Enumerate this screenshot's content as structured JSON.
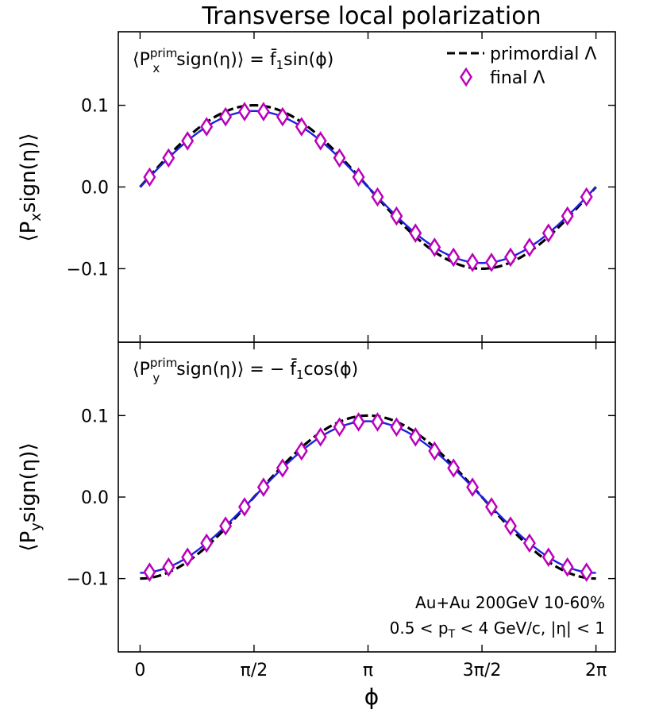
{
  "chart_data": {
    "type": "line",
    "title": "Transverse local polarization",
    "xlabel": "ϕ",
    "x_ticks": [
      {
        "value": 0,
        "label": "0"
      },
      {
        "value": 1.5708,
        "label": "π/2"
      },
      {
        "value": 3.1416,
        "label": "π"
      },
      {
        "value": 4.7124,
        "label": "3π/2"
      },
      {
        "value": 6.2832,
        "label": "2π"
      }
    ],
    "xlim": [
      -0.3,
      6.55
    ],
    "legend": {
      "placement": "top-right",
      "entries": [
        {
          "label": "primordial Λ",
          "style": "black dashed line"
        },
        {
          "label": "final Λ",
          "style": "magenta open diamond"
        }
      ]
    },
    "colors": {
      "primordial": "#000000",
      "fit": "#1f1fe0",
      "final": "#bb00bb"
    },
    "panels": [
      {
        "ylabel": "⟨Pxsign(η)⟩",
        "ylabel_main": "⟨P",
        "ylabel_sub": "x",
        "ylabel_rest": "sign(η)⟩",
        "ylim": [
          -0.19,
          0.19
        ],
        "y_ticks": [
          {
            "value": 0.1,
            "label": "0.1"
          },
          {
            "value": 0.0,
            "label": "0.0"
          },
          {
            "value": -0.1,
            "label": "−0.1"
          }
        ],
        "formula": {
          "lhs_open": "⟨P",
          "sup": "prim",
          "sub": "x",
          "lhs_rest": "sign(η)⟩ = ",
          "fbar": "f̄",
          "fsub": "1",
          "rhs": "sin(ϕ)"
        },
        "series": [
          {
            "name": "primordial Λ",
            "style": "dashed",
            "function": "0.1*sin(x)",
            "amplitude": 0.1,
            "phase": "sin"
          },
          {
            "name": "fit",
            "style": "solid",
            "function": "0.093*sin(x)",
            "amplitude": 0.093,
            "phase": "sin"
          },
          {
            "name": "final Λ",
            "style": "markers",
            "x": [
              0.1309,
              0.3927,
              0.6545,
              0.9163,
              1.1781,
              1.4399,
              1.7017,
              1.9635,
              2.2253,
              2.4871,
              2.7489,
              3.0107,
              3.2725,
              3.5343,
              3.7961,
              4.0579,
              4.3197,
              4.5815,
              4.8433,
              5.1051,
              5.3669,
              5.6287,
              5.8905,
              6.1523
            ],
            "y": [
              0.0121,
              0.0356,
              0.0565,
              0.0738,
              0.0859,
              0.0922,
              0.0922,
              0.0859,
              0.0738,
              0.0565,
              0.0356,
              0.0121,
              -0.0121,
              -0.0356,
              -0.0565,
              -0.0738,
              -0.0859,
              -0.0922,
              -0.0922,
              -0.0859,
              -0.0738,
              -0.0565,
              -0.0356,
              -0.0121
            ]
          }
        ]
      },
      {
        "ylabel": "⟨Pysign(η)⟩",
        "ylabel_main": "⟨P",
        "ylabel_sub": "y",
        "ylabel_rest": "sign(η)⟩",
        "ylim": [
          -0.19,
          0.19
        ],
        "y_ticks": [
          {
            "value": 0.1,
            "label": "0.1"
          },
          {
            "value": 0.0,
            "label": "0.0"
          },
          {
            "value": -0.1,
            "label": "−0.1"
          }
        ],
        "formula": {
          "lhs_open": "⟨P",
          "sup": "prim",
          "sub": "y",
          "lhs_rest": "sign(η)⟩ = − ",
          "fbar": "f̄",
          "fsub": "1",
          "rhs": "cos(ϕ)"
        },
        "annotation": {
          "line1": "Au+Au 200GeV 10-60%",
          "line2_a": "0.5 < p",
          "line2_sub": "T",
          "line2_b": " < 4 GeV/c, |η| < 1"
        },
        "series": [
          {
            "name": "primordial Λ",
            "style": "dashed",
            "function": "-0.1*cos(x)",
            "amplitude": 0.1,
            "phase": "negcos"
          },
          {
            "name": "fit",
            "style": "solid",
            "function": "-0.093*cos(x)",
            "amplitude": 0.093,
            "phase": "negcos"
          },
          {
            "name": "final Λ",
            "style": "markers",
            "x": [
              0.1309,
              0.3927,
              0.6545,
              0.9163,
              1.1781,
              1.4399,
              1.7017,
              1.9635,
              2.2253,
              2.4871,
              2.7489,
              3.0107,
              3.2725,
              3.5343,
              3.7961,
              4.0579,
              4.3197,
              4.5815,
              4.8433,
              5.1051,
              5.3669,
              5.6287,
              5.8905,
              6.1523
            ],
            "y": [
              -0.0922,
              -0.0859,
              -0.0738,
              -0.0565,
              -0.0356,
              -0.0121,
              0.0121,
              0.0356,
              0.0565,
              0.0738,
              0.0859,
              0.0922,
              0.0922,
              0.0859,
              0.0738,
              0.0565,
              0.0356,
              0.0121,
              -0.0121,
              -0.0356,
              -0.0565,
              -0.0738,
              -0.0859,
              -0.0922
            ]
          }
        ]
      }
    ]
  }
}
